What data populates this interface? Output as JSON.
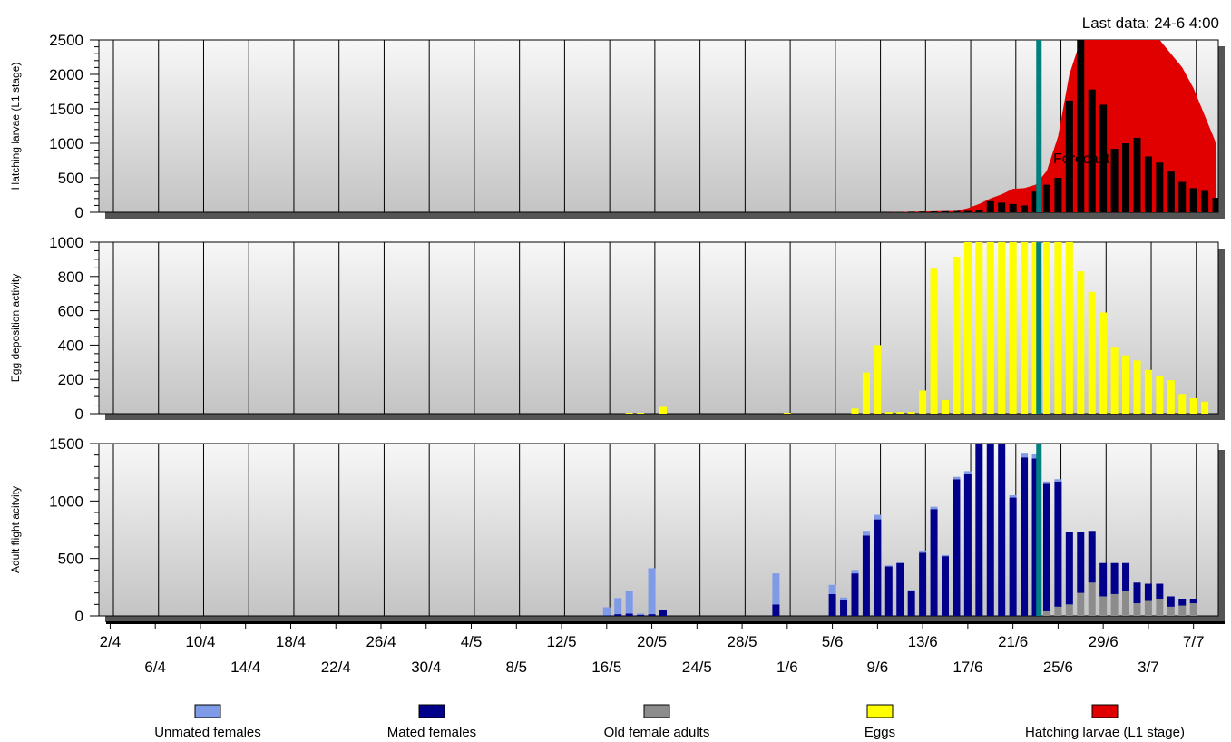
{
  "header": {
    "last_data": "Last data: 24-6 4:00",
    "forecast_label": "Forecast"
  },
  "colors": {
    "unmated": "#7f9ae6",
    "mated": "#00008b",
    "old": "#8c8c8c",
    "eggs": "#ffff00",
    "larvae_area": "#e00000",
    "larvae_bar": "#000000",
    "now_line": "#008080"
  },
  "legend": [
    {
      "label": "Unmated females",
      "color": "#7f9ae6"
    },
    {
      "label": "Mated females",
      "color": "#00008b"
    },
    {
      "label": "Old female adults",
      "color": "#8c8c8c"
    },
    {
      "label": "Eggs",
      "color": "#ffff00"
    },
    {
      "label": "Hatching larvae (L1 stage)",
      "color": "#e00000"
    }
  ],
  "chart_data": [
    {
      "type": "bar",
      "panel": "larvae",
      "ylabel": "Hatching larvae (L1 stage)",
      "ylim": [
        0,
        2500
      ],
      "yticks": [
        0,
        500,
        1000,
        1500,
        2000,
        2500
      ],
      "now_day": 83.3,
      "area_series": {
        "name": "Hatching larvae (L1 stage)",
        "points": [
          [
            70,
            0
          ],
          [
            71,
            5
          ],
          [
            72,
            8
          ],
          [
            73,
            12
          ],
          [
            74,
            15
          ],
          [
            75,
            18
          ],
          [
            76,
            20
          ],
          [
            77,
            60
          ],
          [
            78,
            120
          ],
          [
            79,
            200
          ],
          [
            80,
            260
          ],
          [
            81,
            340
          ],
          [
            82,
            350
          ],
          [
            83,
            400
          ],
          [
            84,
            600
          ],
          [
            85,
            1100
          ],
          [
            86,
            2000
          ],
          [
            87,
            2500
          ],
          [
            88,
            2500
          ],
          [
            89,
            2500
          ],
          [
            90,
            2500
          ],
          [
            91,
            2500
          ],
          [
            92,
            2500
          ],
          [
            93,
            2500
          ],
          [
            94,
            2500
          ],
          [
            95,
            2300
          ],
          [
            96,
            2100
          ],
          [
            97,
            1800
          ],
          [
            98,
            1400
          ],
          [
            99,
            1000
          ]
        ]
      },
      "bar_series": {
        "name": "Hatching larvae",
        "days": [
          71,
          72,
          73,
          74,
          75,
          76,
          77,
          78,
          79,
          80,
          81,
          82,
          83,
          84,
          85,
          86,
          87,
          88,
          89,
          90,
          91,
          92,
          93,
          94,
          95,
          96,
          97,
          98,
          99
        ],
        "values": [
          5,
          8,
          10,
          12,
          15,
          18,
          20,
          40,
          160,
          140,
          120,
          100,
          300,
          400,
          500,
          1620,
          2500,
          1780,
          1560,
          920,
          1000,
          1080,
          810,
          720,
          590,
          440,
          350,
          310,
          210
        ]
      }
    },
    {
      "type": "bar",
      "panel": "eggs",
      "ylabel": "Egg deposition activity",
      "ylim": [
        0,
        1000
      ],
      "yticks": [
        0,
        200,
        400,
        600,
        800,
        1000
      ],
      "now_day": 83.3,
      "series": [
        {
          "name": "Eggs",
          "days": [
            47,
            48,
            50,
            61,
            67,
            68,
            69,
            70,
            71,
            72,
            73,
            74,
            75,
            76,
            77,
            78,
            79,
            80,
            81,
            82,
            83,
            84,
            85,
            86,
            87,
            88,
            89,
            90,
            91,
            92,
            93,
            94,
            95,
            96,
            97,
            98,
            99
          ],
          "values": [
            5,
            5,
            40,
            5,
            30,
            240,
            400,
            10,
            10,
            10,
            135,
            845,
            80,
            915,
            1000,
            1000,
            1000,
            1000,
            1000,
            1000,
            1000,
            1000,
            1000,
            1000,
            830,
            710,
            590,
            385,
            340,
            310,
            255,
            220,
            195,
            115,
            90,
            70,
            0
          ]
        }
      ]
    },
    {
      "type": "bar",
      "panel": "adults",
      "stacked": true,
      "ylabel": "Adult flight acitvity",
      "ylim": [
        0,
        1500
      ],
      "yticks": [
        0,
        500,
        1000,
        1500
      ],
      "now_day": 83.3,
      "days": [
        45,
        46,
        47,
        48,
        49,
        50,
        60,
        65,
        66,
        67,
        68,
        69,
        70,
        71,
        72,
        73,
        74,
        75,
        76,
        77,
        78,
        79,
        80,
        81,
        82,
        83,
        84,
        85,
        86,
        87,
        88,
        89,
        90,
        91,
        92,
        93,
        94,
        95,
        96,
        97,
        98,
        99
      ],
      "series": [
        {
          "name": "Old female adults",
          "values": [
            0,
            0,
            0,
            0,
            0,
            0,
            0,
            0,
            0,
            0,
            0,
            0,
            0,
            0,
            0,
            0,
            0,
            0,
            0,
            0,
            0,
            0,
            0,
            0,
            0,
            0,
            40,
            80,
            100,
            200,
            290,
            170,
            190,
            220,
            110,
            130,
            150,
            80,
            90,
            110,
            0,
            0
          ]
        },
        {
          "name": "Mated females",
          "values": [
            5,
            15,
            20,
            10,
            15,
            50,
            100,
            190,
            140,
            370,
            700,
            840,
            430,
            460,
            220,
            550,
            930,
            520,
            1190,
            1240,
            1500,
            1500,
            1500,
            1030,
            1380,
            1370,
            1110,
            1090,
            630,
            530,
            450,
            290,
            270,
            240,
            180,
            150,
            130,
            90,
            60,
            40,
            0,
            0
          ]
        },
        {
          "name": "Unmated females",
          "values": [
            70,
            140,
            200,
            10,
            400,
            0,
            270,
            80,
            20,
            30,
            40,
            40,
            10,
            5,
            5,
            20,
            20,
            10,
            20,
            20,
            0,
            0,
            0,
            20,
            40,
            40,
            20,
            20,
            0,
            0,
            0,
            0,
            0,
            0,
            0,
            0,
            0,
            0,
            0,
            0,
            0,
            0
          ]
        }
      ]
    }
  ],
  "x_axis": {
    "ticks_row1": [
      "2/4",
      "10/4",
      "18/4",
      "26/4",
      "4/5",
      "12/5",
      "20/5",
      "28/5",
      "5/6",
      "13/6",
      "21/6",
      "29/6",
      "7/7"
    ],
    "ticks_row2": [
      "6/4",
      "14/4",
      "22/4",
      "30/4",
      "8/5",
      "16/5",
      "24/5",
      "1/6",
      "9/6",
      "17/6",
      "25/6",
      "3/7"
    ]
  }
}
